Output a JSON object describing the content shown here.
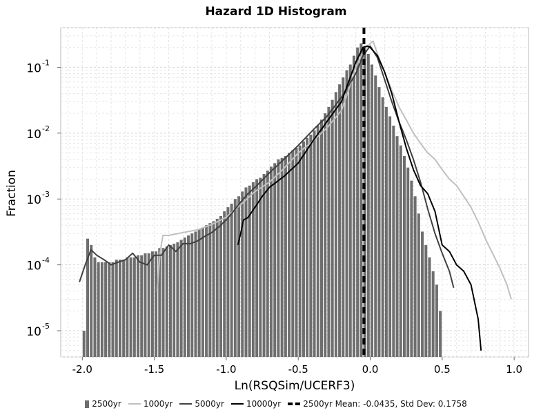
{
  "chart_data": {
    "type": "bar",
    "title": "Hazard 1D Histogram",
    "xlabel": "Ln(RSQSim/UCERF3)",
    "ylabel": "Fraction",
    "xlim": [
      -2.15,
      1.1
    ],
    "ylim": [
      4e-06,
      0.4
    ],
    "yscale": "log",
    "grid": true,
    "legend_position": "bottom",
    "x_ticks": [
      -2.0,
      -1.5,
      -1.0,
      -0.5,
      0.0,
      0.5,
      1.0
    ],
    "x_tick_labels": [
      "-2.0",
      "-1.5",
      "-1.0",
      "-0.5",
      "0.0",
      "0.5",
      "1.0"
    ],
    "y_ticks": [
      {
        "value": 0.1,
        "base": "10",
        "exp": "-1"
      },
      {
        "value": 0.01,
        "base": "10",
        "exp": "-2"
      },
      {
        "value": 0.001,
        "base": "10",
        "exp": "-3"
      },
      {
        "value": 0.0001,
        "base": "10",
        "exp": "-4"
      },
      {
        "value": 1e-05,
        "base": "10",
        "exp": "-5"
      }
    ],
    "bars": {
      "name": "2500yr",
      "color": "#6e6e6e",
      "bin_width": 0.025,
      "x": [
        -1.9875,
        -1.9625,
        -1.9375,
        -1.9125,
        -1.8875,
        -1.8625,
        -1.8375,
        -1.8125,
        -1.7875,
        -1.7625,
        -1.7375,
        -1.7125,
        -1.6875,
        -1.6625,
        -1.6375,
        -1.6125,
        -1.5875,
        -1.5625,
        -1.5375,
        -1.5125,
        -1.4875,
        -1.4625,
        -1.4375,
        -1.4125,
        -1.3875,
        -1.3625,
        -1.3375,
        -1.3125,
        -1.2875,
        -1.2625,
        -1.2375,
        -1.2125,
        -1.1875,
        -1.1625,
        -1.1375,
        -1.1125,
        -1.0875,
        -1.0625,
        -1.0375,
        -1.0125,
        -0.9875,
        -0.9625,
        -0.9375,
        -0.9125,
        -0.8875,
        -0.8625,
        -0.8375,
        -0.8125,
        -0.7875,
        -0.7625,
        -0.7375,
        -0.7125,
        -0.6875,
        -0.6625,
        -0.6375,
        -0.6125,
        -0.5875,
        -0.5625,
        -0.5375,
        -0.5125,
        -0.4875,
        -0.4625,
        -0.4375,
        -0.4125,
        -0.3875,
        -0.3625,
        -0.3375,
        -0.3125,
        -0.2875,
        -0.2625,
        -0.2375,
        -0.2125,
        -0.1875,
        -0.1625,
        -0.1375,
        -0.1125,
        -0.0875,
        -0.0625,
        -0.0375,
        -0.0125,
        0.0125,
        0.0375,
        0.0625,
        0.0875,
        0.1125,
        0.1375,
        0.1625,
        0.1875,
        0.2125,
        0.2375,
        0.2625,
        0.2875,
        0.3125,
        0.3375,
        0.3625,
        0.3875,
        0.4125,
        0.4375,
        0.4625,
        0.4875
      ],
      "values": [
        1e-05,
        0.00025,
        0.0002,
        0.00013,
        0.00011,
        0.00011,
        0.00011,
        0.00011,
        0.00011,
        0.00012,
        0.00012,
        0.00012,
        0.00013,
        0.00013,
        0.00013,
        0.00014,
        0.00014,
        0.00015,
        0.00015,
        0.00016,
        0.00016,
        0.00018,
        0.00018,
        0.00019,
        0.0002,
        0.00021,
        0.00022,
        0.00024,
        0.00026,
        0.00028,
        0.0003,
        0.00032,
        0.00035,
        0.00037,
        0.0004,
        0.00043,
        0.00046,
        0.0005,
        0.00055,
        0.00065,
        0.00075,
        0.00085,
        0.001,
        0.0011,
        0.0013,
        0.0015,
        0.0016,
        0.0018,
        0.002,
        0.0021,
        0.0024,
        0.0027,
        0.0031,
        0.0035,
        0.004,
        0.0042,
        0.0045,
        0.005,
        0.0055,
        0.006,
        0.0065,
        0.0075,
        0.0085,
        0.0095,
        0.011,
        0.013,
        0.016,
        0.02,
        0.025,
        0.032,
        0.042,
        0.055,
        0.07,
        0.09,
        0.11,
        0.15,
        0.2,
        0.23,
        0.21,
        0.16,
        0.11,
        0.075,
        0.05,
        0.035,
        0.025,
        0.018,
        0.013,
        0.009,
        0.0065,
        0.0045,
        0.003,
        0.0019,
        0.0011,
        0.0006,
        0.00032,
        0.0002,
        0.00013,
        8e-05,
        5e-05,
        2e-05
      ]
    },
    "series": [
      {
        "name": "1000yr",
        "color": "#c0c0c0",
        "x": [
          -1.48,
          -1.46,
          -1.44,
          -1.4,
          -1.3,
          -1.2,
          -1.1,
          -1.0,
          -0.9,
          -0.8,
          -0.7,
          -0.6,
          -0.5,
          -0.4,
          -0.3,
          -0.2,
          -0.15,
          -0.1,
          -0.05,
          0.0,
          0.02,
          0.05,
          0.1,
          0.15,
          0.2,
          0.25,
          0.3,
          0.35,
          0.4,
          0.45,
          0.5,
          0.55,
          0.6,
          0.65,
          0.7,
          0.75,
          0.8,
          0.85,
          0.9,
          0.95,
          0.98
        ],
        "values": [
          4e-05,
          0.00015,
          0.00028,
          0.00028,
          0.00031,
          0.00034,
          0.00041,
          0.00053,
          0.00082,
          0.0013,
          0.0018,
          0.0029,
          0.005,
          0.0075,
          0.012,
          0.022,
          0.045,
          0.1,
          0.17,
          0.23,
          0.25,
          0.16,
          0.085,
          0.045,
          0.025,
          0.016,
          0.01,
          0.007,
          0.005,
          0.004,
          0.0028,
          0.002,
          0.0016,
          0.0011,
          0.00075,
          0.00045,
          0.00025,
          0.00015,
          9e-05,
          5e-05,
          3e-05
        ]
      },
      {
        "name": "5000yr",
        "color": "#404040",
        "x": [
          -2.02,
          -1.98,
          -1.94,
          -1.9,
          -1.85,
          -1.8,
          -1.75,
          -1.7,
          -1.65,
          -1.6,
          -1.55,
          -1.5,
          -1.45,
          -1.4,
          -1.35,
          -1.3,
          -1.25,
          -1.2,
          -1.15,
          -1.1,
          -1.05,
          -1.0,
          -0.95,
          -0.9,
          -0.85,
          -0.8,
          -0.7,
          -0.6,
          -0.5,
          -0.4,
          -0.3,
          -0.2,
          -0.1,
          -0.05,
          0.0,
          0.05,
          0.1,
          0.15,
          0.2,
          0.25,
          0.3,
          0.35,
          0.4,
          0.45,
          0.5,
          0.55,
          0.58
        ],
        "values": [
          5.5e-05,
          0.0001,
          0.00017,
          0.00014,
          0.00012,
          0.0001,
          0.00011,
          0.00012,
          0.00015,
          0.00011,
          0.0001,
          0.00014,
          0.00014,
          0.0002,
          0.00016,
          0.00021,
          0.00021,
          0.00023,
          0.00027,
          0.00031,
          0.00038,
          0.00048,
          0.00065,
          0.0009,
          0.0012,
          0.0015,
          0.0025,
          0.004,
          0.0065,
          0.011,
          0.018,
          0.035,
          0.08,
          0.15,
          0.21,
          0.14,
          0.065,
          0.03,
          0.015,
          0.008,
          0.004,
          0.0018,
          0.0007,
          0.0003,
          0.00015,
          8e-05,
          4.5e-05
        ]
      },
      {
        "name": "10000yr",
        "color": "#000000",
        "x": [
          -0.92,
          -0.9,
          -0.88,
          -0.85,
          -0.8,
          -0.75,
          -0.7,
          -0.6,
          -0.5,
          -0.4,
          -0.3,
          -0.2,
          -0.15,
          -0.1,
          -0.05,
          -0.02,
          0.0,
          0.05,
          0.1,
          0.15,
          0.2,
          0.25,
          0.3,
          0.35,
          0.4,
          0.45,
          0.5,
          0.55,
          0.6,
          0.65,
          0.7,
          0.75,
          0.77
        ],
        "values": [
          0.0002,
          0.0003,
          0.00048,
          0.00052,
          0.00075,
          0.0011,
          0.0015,
          0.0022,
          0.0035,
          0.0075,
          0.015,
          0.03,
          0.06,
          0.12,
          0.2,
          0.21,
          0.2,
          0.15,
          0.085,
          0.04,
          0.015,
          0.006,
          0.0028,
          0.0016,
          0.0012,
          0.00065,
          0.0002,
          0.00016,
          0.0001,
          8e-05,
          5e-05,
          1.5e-05,
          5e-06
        ]
      }
    ],
    "mean_line": {
      "name": "2500yr Mean: -0.0435, Std Dev: 0.1758",
      "x": -0.0435,
      "std_dev": 0.1758,
      "color": "#000000"
    },
    "legend": [
      {
        "label": "2500yr",
        "kind": "bar",
        "color": "#6e6e6e"
      },
      {
        "label": "1000yr",
        "kind": "line",
        "color": "#c0c0c0"
      },
      {
        "label": "5000yr",
        "kind": "line",
        "color": "#404040"
      },
      {
        "label": "10000yr",
        "kind": "line",
        "color": "#000000"
      },
      {
        "label": "2500yr Mean: -0.0435, Std Dev: 0.1758",
        "kind": "dash",
        "color": "#000000"
      }
    ]
  }
}
